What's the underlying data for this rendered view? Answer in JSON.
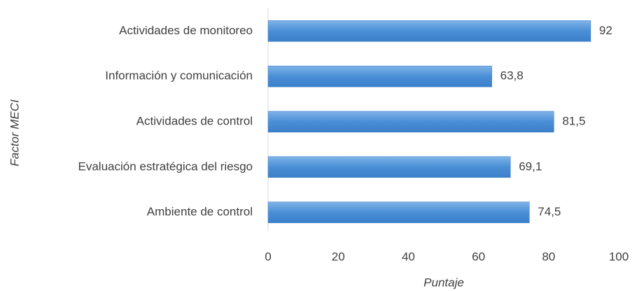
{
  "chart_data": {
    "type": "bar",
    "orientation": "horizontal",
    "xlabel": "Puntaje",
    "ylabel": "Factor MECI",
    "categories": [
      "Actividades de monitoreo",
      "Información y comunicación",
      "Actividades de control",
      "Evaluación estratégica del riesgo",
      "Ambiente de control"
    ],
    "values": [
      92,
      63.8,
      81.5,
      69.1,
      74.5
    ],
    "value_labels": [
      "92",
      "63,8",
      "81,5",
      "69,1",
      "74,5"
    ],
    "color": "#4a8fd6",
    "xlim": [
      0,
      100
    ],
    "xticks": [
      0,
      20,
      40,
      60,
      80,
      100
    ],
    "grid": false
  }
}
